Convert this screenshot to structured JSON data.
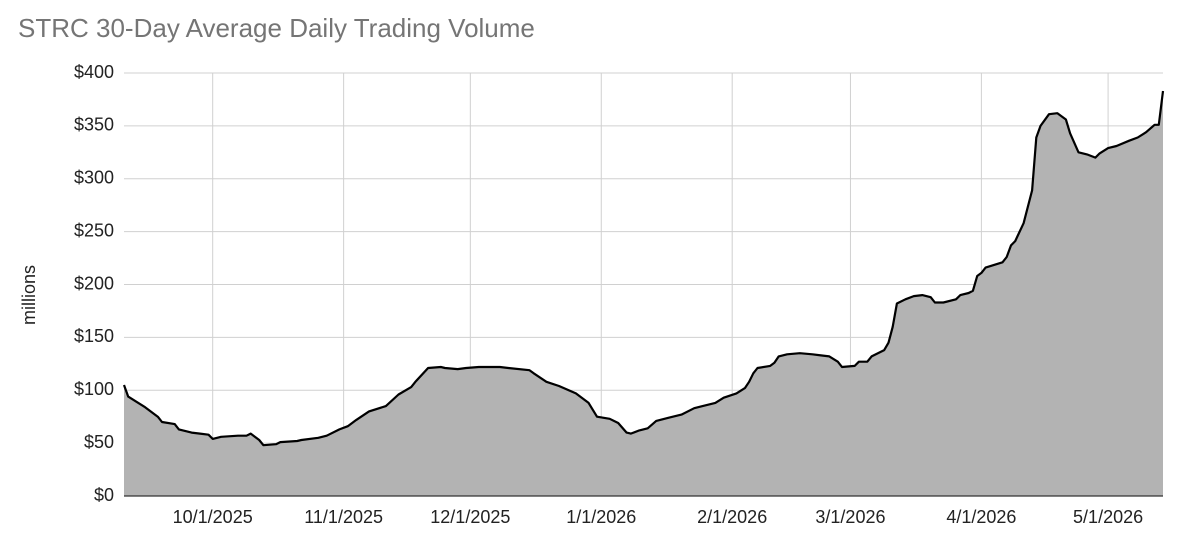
{
  "chart_data": {
    "type": "area",
    "title": "STRC 30-Day Average Daily Trading Volume",
    "ylabel": "millions",
    "x": [
      "2025-09-10",
      "2025-09-11",
      "2025-09-13",
      "2025-09-15",
      "2025-09-18",
      "2025-09-19",
      "2025-09-22",
      "2025-09-23",
      "2025-09-26",
      "2025-09-28",
      "2025-09-30",
      "2025-10-01",
      "2025-10-03",
      "2025-10-07",
      "2025-10-09",
      "2025-10-10",
      "2025-10-12",
      "2025-10-13",
      "2025-10-16",
      "2025-10-17",
      "2025-10-21",
      "2025-10-22",
      "2025-10-26",
      "2025-10-28",
      "2025-10-31",
      "2025-11-02",
      "2025-11-04",
      "2025-11-07",
      "2025-11-11",
      "2025-11-14",
      "2025-11-17",
      "2025-11-18",
      "2025-11-21",
      "2025-11-24",
      "2025-11-25",
      "2025-11-28",
      "2025-11-30",
      "2025-12-03",
      "2025-12-08",
      "2025-12-10",
      "2025-12-15",
      "2025-12-16",
      "2025-12-19",
      "2025-12-22",
      "2025-12-26",
      "2025-12-29",
      "2025-12-31",
      "2026-01-03",
      "2026-01-05",
      "2026-01-07",
      "2026-01-08",
      "2026-01-10",
      "2026-01-12",
      "2026-01-14",
      "2026-01-17",
      "2026-01-20",
      "2026-01-23",
      "2026-01-25",
      "2026-01-28",
      "2026-01-30",
      "2026-02-02",
      "2026-02-04",
      "2026-02-05",
      "2026-02-06",
      "2026-02-07",
      "2026-02-10",
      "2026-02-11",
      "2026-02-12",
      "2026-02-14",
      "2026-02-17",
      "2026-02-20",
      "2026-02-22",
      "2026-02-24",
      "2026-02-26",
      "2026-02-27",
      "2026-03-02",
      "2026-03-03",
      "2026-03-05",
      "2026-03-06",
      "2026-03-09",
      "2026-03-10",
      "2026-03-11",
      "2026-03-12",
      "2026-03-14",
      "2026-03-16",
      "2026-03-18",
      "2026-03-20",
      "2026-03-21",
      "2026-03-23",
      "2026-03-26",
      "2026-03-27",
      "2026-03-29",
      "2026-03-30",
      "2026-03-31",
      "2026-04-01",
      "2026-04-02",
      "2026-04-06",
      "2026-04-07",
      "2026-04-08",
      "2026-04-09",
      "2026-04-11",
      "2026-04-13",
      "2026-04-14",
      "2026-04-15",
      "2026-04-17",
      "2026-04-19",
      "2026-04-21",
      "2026-04-22",
      "2026-04-24",
      "2026-04-26",
      "2026-04-28",
      "2026-04-29",
      "2026-05-01",
      "2026-05-03",
      "2026-05-06",
      "2026-05-08",
      "2026-05-10",
      "2026-05-12",
      "2026-05-13",
      "2026-05-14"
    ],
    "values": [
      105,
      94,
      89,
      84,
      75,
      70,
      68,
      63,
      60,
      59,
      58,
      54,
      56,
      57,
      57,
      59,
      53,
      48,
      49,
      51,
      52,
      53,
      55,
      57,
      63,
      66,
      72,
      80,
      85,
      96,
      103,
      108,
      121,
      122,
      121,
      120,
      121,
      122,
      122,
      121,
      119,
      116,
      108,
      104,
      97,
      88,
      75,
      73,
      69,
      60,
      59,
      62,
      64,
      71,
      74,
      77,
      83,
      85,
      88,
      93,
      97,
      102,
      108,
      116,
      121,
      123,
      126,
      132,
      134,
      135,
      134,
      133,
      132,
      127,
      122,
      123,
      127,
      127,
      132,
      138,
      145,
      160,
      182,
      186,
      189,
      190,
      188,
      183,
      183,
      186,
      190,
      192,
      194,
      208,
      211,
      216,
      221,
      226,
      237,
      241,
      258,
      289,
      339,
      350,
      361,
      362,
      356,
      343,
      325,
      323,
      320,
      324,
      329,
      331,
      336,
      339,
      344,
      351,
      351,
      383
    ],
    "line_color": "#000000",
    "fill_color": "#b3b3b3",
    "xlim": [
      "2025-09-10",
      "2026-05-14"
    ],
    "xticks": [
      {
        "value": "2025-10-01",
        "label": "10/1/2025"
      },
      {
        "value": "2025-11-01",
        "label": "11/1/2025"
      },
      {
        "value": "2025-12-01",
        "label": "12/1/2025"
      },
      {
        "value": "2026-01-01",
        "label": "1/1/2026"
      },
      {
        "value": "2026-02-01",
        "label": "2/1/2026"
      },
      {
        "value": "2026-03-01",
        "label": "3/1/2026"
      },
      {
        "value": "2026-04-01",
        "label": "4/1/2026"
      },
      {
        "value": "2026-05-01",
        "label": "5/1/2026"
      }
    ],
    "ylim": [
      0,
      400
    ],
    "yticks": [
      {
        "value": 0,
        "label": "$0"
      },
      {
        "value": 50,
        "label": "$50"
      },
      {
        "value": 100,
        "label": "$100"
      },
      {
        "value": 150,
        "label": "$150"
      },
      {
        "value": 200,
        "label": "$200"
      },
      {
        "value": 250,
        "label": "$250"
      },
      {
        "value": 300,
        "label": "$300"
      },
      {
        "value": 350,
        "label": "$350"
      },
      {
        "value": 400,
        "label": "$400"
      }
    ],
    "grid": true
  }
}
